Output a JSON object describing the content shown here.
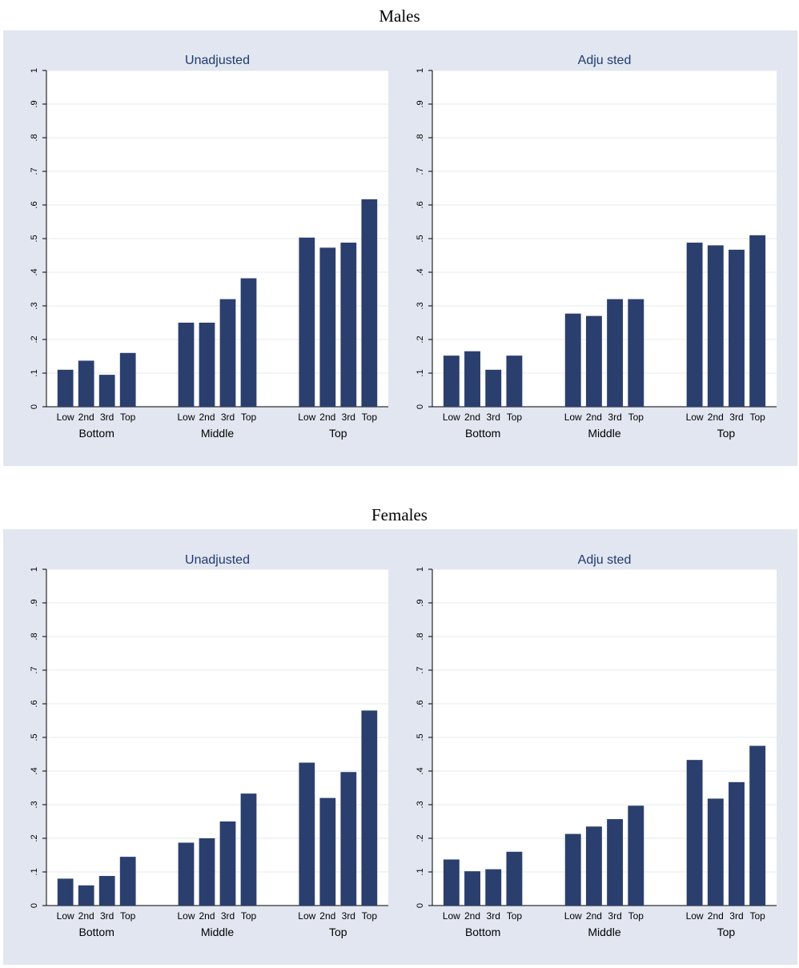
{
  "sections": [
    {
      "title": "Males"
    },
    {
      "title": "Females"
    }
  ],
  "chart_data": [
    {
      "type": "bar",
      "figure": "Males",
      "title": "Unadjusted",
      "ylim": [
        0,
        1
      ],
      "yticks": [
        "0",
        ".1",
        ".2",
        ".3",
        ".4",
        ".5",
        ".6",
        ".7",
        ".8",
        ".9",
        "1"
      ],
      "groups": [
        "Bottom",
        "Middle",
        "Top"
      ],
      "categories": [
        "Low",
        "2nd",
        "3rd",
        "Top"
      ],
      "values": [
        [
          0.11,
          0.137,
          0.095,
          0.16
        ],
        [
          0.25,
          0.25,
          0.32,
          0.382
        ],
        [
          0.503,
          0.473,
          0.488,
          0.617
        ]
      ],
      "bar_color": "#2b3f6e",
      "grid": true
    },
    {
      "type": "bar",
      "figure": "Males",
      "title": "Adju sted",
      "ylim": [
        0,
        1
      ],
      "yticks": [
        "0",
        ".1",
        ".2",
        ".3",
        ".4",
        ".5",
        ".6",
        ".7",
        ".8",
        ".9",
        "1"
      ],
      "groups": [
        "Bottom",
        "Middle",
        "Top"
      ],
      "categories": [
        "Low",
        "2nd",
        "3rd",
        "Top"
      ],
      "values": [
        [
          0.152,
          0.165,
          0.11,
          0.152
        ],
        [
          0.277,
          0.27,
          0.32,
          0.32
        ],
        [
          0.488,
          0.48,
          0.467,
          0.51
        ]
      ],
      "bar_color": "#2b3f6e",
      "grid": true
    },
    {
      "type": "bar",
      "figure": "Females",
      "title": "Unadjusted",
      "ylim": [
        0,
        1
      ],
      "yticks": [
        "0",
        ".1",
        ".2",
        ".3",
        ".4",
        ".5",
        ".6",
        ".7",
        ".8",
        ".9",
        "1"
      ],
      "groups": [
        "Bottom",
        "Middle",
        "Top"
      ],
      "categories": [
        "Low",
        "2nd",
        "3rd",
        "Top"
      ],
      "values": [
        [
          0.08,
          0.06,
          0.088,
          0.145
        ],
        [
          0.187,
          0.2,
          0.25,
          0.333
        ],
        [
          0.425,
          0.32,
          0.397,
          0.58
        ]
      ],
      "bar_color": "#2b3f6e",
      "grid": true
    },
    {
      "type": "bar",
      "figure": "Females",
      "title": "Adju sted",
      "ylim": [
        0,
        1
      ],
      "yticks": [
        "0",
        ".1",
        ".2",
        ".3",
        ".4",
        ".5",
        ".6",
        ".7",
        ".8",
        ".9",
        "1"
      ],
      "groups": [
        "Bottom",
        "Middle",
        "Top"
      ],
      "categories": [
        "Low",
        "2nd",
        "3rd",
        "Top"
      ],
      "values": [
        [
          0.137,
          0.102,
          0.108,
          0.16
        ],
        [
          0.213,
          0.235,
          0.257,
          0.297
        ],
        [
          0.433,
          0.318,
          0.367,
          0.475
        ]
      ],
      "bar_color": "#2b3f6e",
      "grid": true
    }
  ]
}
